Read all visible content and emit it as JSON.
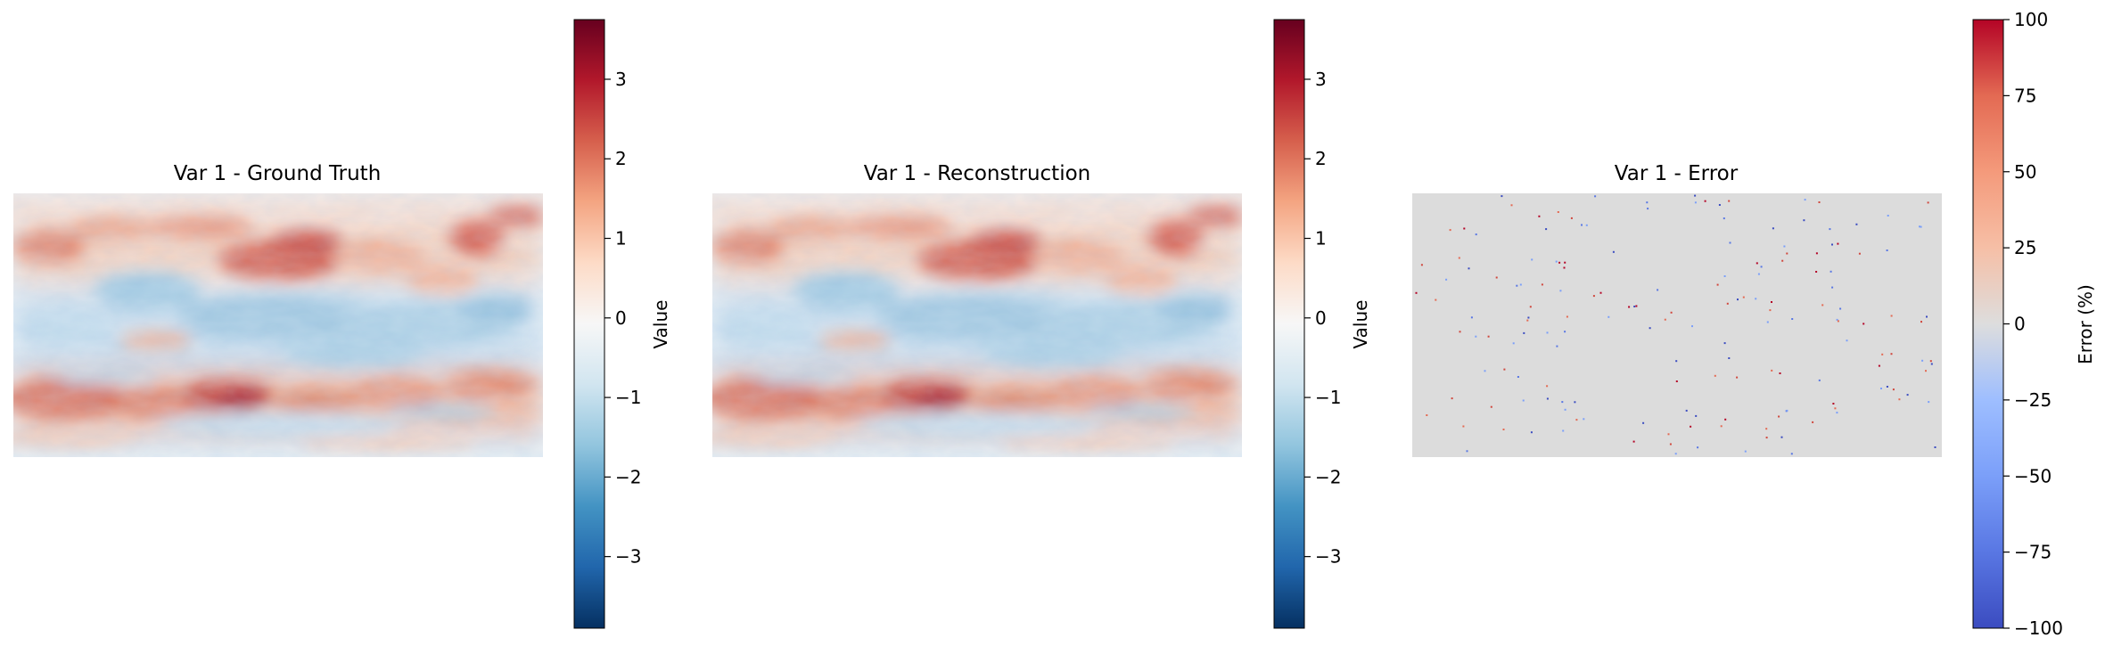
{
  "chart_data": [
    {
      "type": "heatmap",
      "title": "Var 1 - Ground Truth",
      "colormap": "RdBu_r",
      "colorbar": {
        "label": "Value",
        "range": [
          -3.9,
          3.75
        ],
        "ticks": [
          -3,
          -2,
          -1,
          0,
          1,
          2,
          3
        ],
        "tick_labels": [
          "−3",
          "−2",
          "−1",
          "0",
          "1",
          "2",
          "3"
        ]
      },
      "axes_visible": false,
      "grid": false
    },
    {
      "type": "heatmap",
      "title": "Var 1 - Reconstruction",
      "colormap": "RdBu_r",
      "colorbar": {
        "label": "Value",
        "range": [
          -3.9,
          3.75
        ],
        "ticks": [
          -3,
          -2,
          -1,
          0,
          1,
          2,
          3
        ],
        "tick_labels": [
          "−3",
          "−2",
          "−1",
          "0",
          "1",
          "2",
          "3"
        ]
      },
      "axes_visible": false,
      "grid": false
    },
    {
      "type": "heatmap",
      "title": "Var 1 - Error",
      "colormap": "coolwarm",
      "background_value": 0,
      "colorbar": {
        "label": "Error (%)",
        "range": [
          -100,
          100
        ],
        "ticks": [
          100,
          75,
          50,
          25,
          0,
          -25,
          -50,
          -75,
          -100
        ],
        "tick_labels": [
          "100",
          "75",
          "50",
          "25",
          "0",
          "−25",
          "−50",
          "−75",
          "−100"
        ]
      },
      "axes_visible": false,
      "grid": false
    }
  ]
}
